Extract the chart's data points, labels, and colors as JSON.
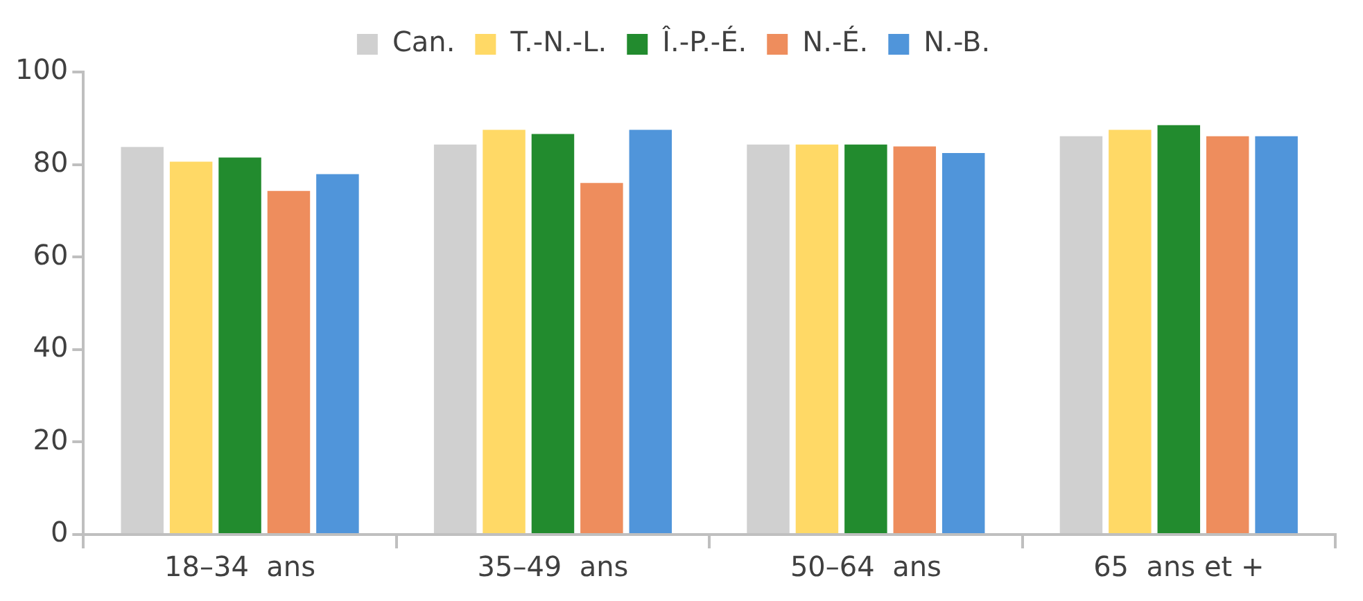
{
  "chart_data": {
    "type": "bar",
    "categories": [
      "18–34  ans",
      "35–49  ans",
      "50–64  ans",
      "65  ans et +"
    ],
    "series": [
      {
        "name": "Can.",
        "color": "#d0d0d0",
        "values": [
          84.1,
          84.6,
          84.6,
          86.4
        ]
      },
      {
        "name": "T.-N.-L.",
        "color": "#ffd966",
        "values": [
          80.9,
          87.8,
          84.6,
          87.8
        ]
      },
      {
        "name": "Î.-P.-É.",
        "color": "#228b2e",
        "values": [
          81.8,
          86.9,
          84.6,
          88.8
        ]
      },
      {
        "name": "N.-É.",
        "color": "#ee8d5d",
        "values": [
          74.6,
          76.3,
          84.2,
          86.4
        ]
      },
      {
        "name": "N.-B.",
        "color": "#5095da",
        "values": [
          78.2,
          87.8,
          82.8,
          86.4
        ]
      }
    ],
    "ylim": [
      0,
      100
    ],
    "yticks": [
      0,
      20,
      40,
      60,
      80,
      100
    ],
    "grid": false,
    "legend": "top"
  }
}
